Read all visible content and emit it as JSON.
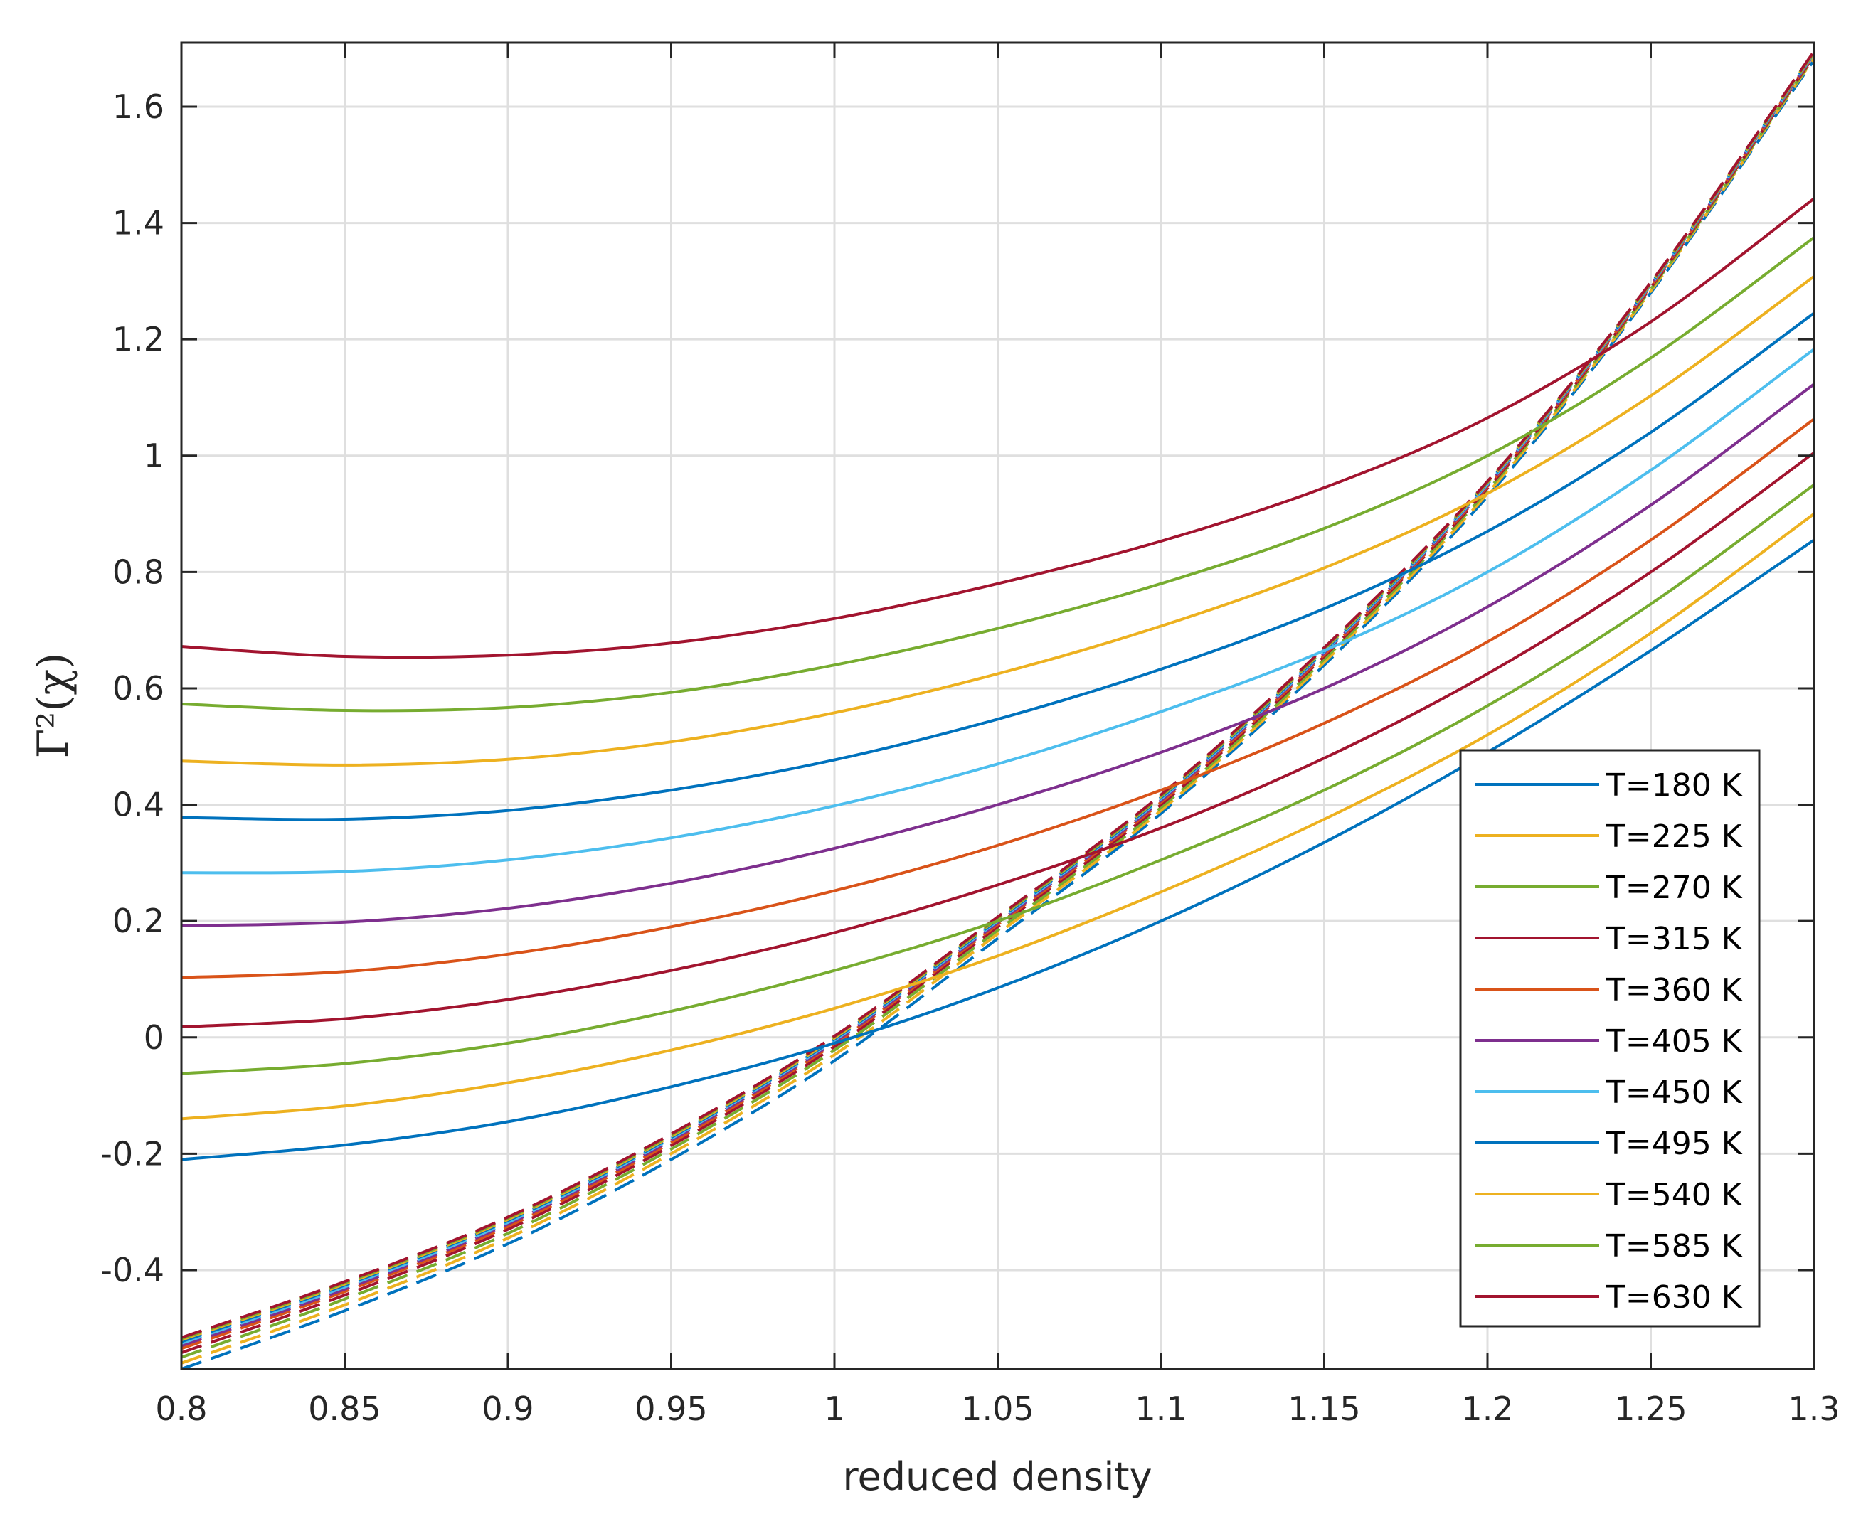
{
  "chart_data": {
    "type": "line",
    "xlabel": "reduced density",
    "ylabel": "Γ²(χ)",
    "xlim": [
      0.8,
      1.3
    ],
    "ylim": [
      -0.57,
      1.71
    ],
    "xticks": [
      0.8,
      0.85,
      0.9,
      0.95,
      1,
      1.05,
      1.1,
      1.15,
      1.2,
      1.25,
      1.3
    ],
    "xtick_labels": [
      "0.8",
      "0.85",
      "0.9",
      "0.95",
      "1",
      "1.05",
      "1.1",
      "1.15",
      "1.2",
      "1.25",
      "1.3"
    ],
    "yticks": [
      -0.4,
      -0.2,
      0,
      0.2,
      0.4,
      0.6,
      0.8,
      1,
      1.2,
      1.4,
      1.6
    ],
    "ytick_labels": [
      "-0.4",
      "-0.2",
      "0",
      "0.2",
      "0.4",
      "0.6",
      "0.8",
      "1",
      "1.2",
      "1.4",
      "1.6"
    ],
    "grid": true,
    "legend_position": "bottom-right",
    "x": [
      0.8,
      0.85,
      0.9,
      0.95,
      1.0,
      1.05,
      1.1,
      1.15,
      1.2,
      1.25,
      1.3
    ],
    "series": [
      {
        "name": "T=180 K",
        "color": "#0072BD",
        "values": [
          -0.21,
          -0.185,
          -0.145,
          -0.085,
          -0.01,
          0.085,
          0.2,
          0.335,
          0.49,
          0.665,
          0.855
        ]
      },
      {
        "name": "T=225 K",
        "color": "#EDB120",
        "values": [
          -0.14,
          -0.118,
          -0.078,
          -0.022,
          0.05,
          0.14,
          0.25,
          0.375,
          0.52,
          0.695,
          0.9
        ]
      },
      {
        "name": "T=270 K",
        "color": "#77AC30",
        "values": [
          -0.062,
          -0.045,
          -0.01,
          0.045,
          0.115,
          0.2,
          0.305,
          0.425,
          0.57,
          0.745,
          0.95
        ]
      },
      {
        "name": "T=315 K",
        "color": "#A2142F",
        "values": [
          0.018,
          0.032,
          0.065,
          0.115,
          0.18,
          0.262,
          0.36,
          0.48,
          0.625,
          0.8,
          1.005
        ]
      },
      {
        "name": "T=360 K",
        "color": "#D95319",
        "values": [
          0.103,
          0.113,
          0.143,
          0.19,
          0.252,
          0.33,
          0.425,
          0.54,
          0.68,
          0.855,
          1.063
        ]
      },
      {
        "name": "T=405 K",
        "color": "#7E2F8E",
        "values": [
          0.192,
          0.198,
          0.222,
          0.265,
          0.325,
          0.4,
          0.49,
          0.6,
          0.74,
          0.915,
          1.123
        ]
      },
      {
        "name": "T=450 K",
        "color": "#4DBEEE",
        "values": [
          0.283,
          0.285,
          0.305,
          0.343,
          0.398,
          0.47,
          0.56,
          0.665,
          0.8,
          0.975,
          1.183
        ]
      },
      {
        "name": "T=495 K",
        "color": "#0072BD",
        "values": [
          0.378,
          0.375,
          0.39,
          0.425,
          0.477,
          0.547,
          0.633,
          0.737,
          0.87,
          1.04,
          1.245
        ]
      },
      {
        "name": "T=540 K",
        "color": "#EDB120",
        "values": [
          0.475,
          0.468,
          0.478,
          0.508,
          0.558,
          0.625,
          0.707,
          0.807,
          0.935,
          1.103,
          1.308
        ]
      },
      {
        "name": "T=585 K",
        "color": "#77AC30",
        "values": [
          0.573,
          0.562,
          0.567,
          0.593,
          0.64,
          0.703,
          0.78,
          0.875,
          1.0,
          1.168,
          1.375
        ]
      },
      {
        "name": "T=630 K",
        "color": "#A2142F",
        "values": [
          0.672,
          0.655,
          0.657,
          0.678,
          0.72,
          0.78,
          0.853,
          0.945,
          1.065,
          1.23,
          1.442
        ]
      }
    ],
    "dashed_series": [
      {
        "color": "#0072BD",
        "values": [
          -0.57,
          -0.47,
          -0.355,
          -0.21,
          -0.04,
          0.17,
          0.385,
          0.64,
          0.93,
          1.28,
          1.68
        ]
      },
      {
        "color": "#EDB120",
        "values": [
          -0.56,
          -0.46,
          -0.345,
          -0.2,
          -0.03,
          0.178,
          0.39,
          0.645,
          0.935,
          1.283,
          1.683
        ]
      },
      {
        "color": "#77AC30",
        "values": [
          -0.55,
          -0.45,
          -0.337,
          -0.192,
          -0.022,
          0.184,
          0.395,
          0.65,
          0.94,
          1.286,
          1.685
        ]
      },
      {
        "color": "#A2142F",
        "values": [
          -0.542,
          -0.443,
          -0.33,
          -0.186,
          -0.016,
          0.19,
          0.4,
          0.655,
          0.944,
          1.289,
          1.687
        ]
      },
      {
        "color": "#D95319",
        "values": [
          -0.535,
          -0.437,
          -0.325,
          -0.181,
          -0.011,
          0.194,
          0.404,
          0.658,
          0.947,
          1.291,
          1.689
        ]
      },
      {
        "color": "#7E2F8E",
        "values": [
          -0.53,
          -0.433,
          -0.321,
          -0.177,
          -0.008,
          0.197,
          0.407,
          0.661,
          0.949,
          1.293,
          1.69
        ]
      },
      {
        "color": "#4DBEEE",
        "values": [
          -0.526,
          -0.429,
          -0.318,
          -0.174,
          -0.005,
          0.2,
          0.41,
          0.663,
          0.951,
          1.294,
          1.691
        ]
      },
      {
        "color": "#0072BD",
        "values": [
          -0.523,
          -0.426,
          -0.315,
          -0.172,
          -0.003,
          0.202,
          0.412,
          0.665,
          0.953,
          1.295,
          1.692
        ]
      },
      {
        "color": "#EDB120",
        "values": [
          -0.52,
          -0.424,
          -0.313,
          -0.17,
          -0.001,
          0.204,
          0.414,
          0.667,
          0.954,
          1.296,
          1.693
        ]
      },
      {
        "color": "#77AC30",
        "values": [
          -0.518,
          -0.422,
          -0.311,
          -0.168,
          0.001,
          0.205,
          0.415,
          0.668,
          0.955,
          1.297,
          1.694
        ]
      },
      {
        "color": "#A2142F",
        "values": [
          -0.516,
          -0.42,
          -0.309,
          -0.166,
          0.002,
          0.207,
          0.417,
          0.67,
          0.956,
          1.298,
          1.695
        ]
      }
    ]
  }
}
